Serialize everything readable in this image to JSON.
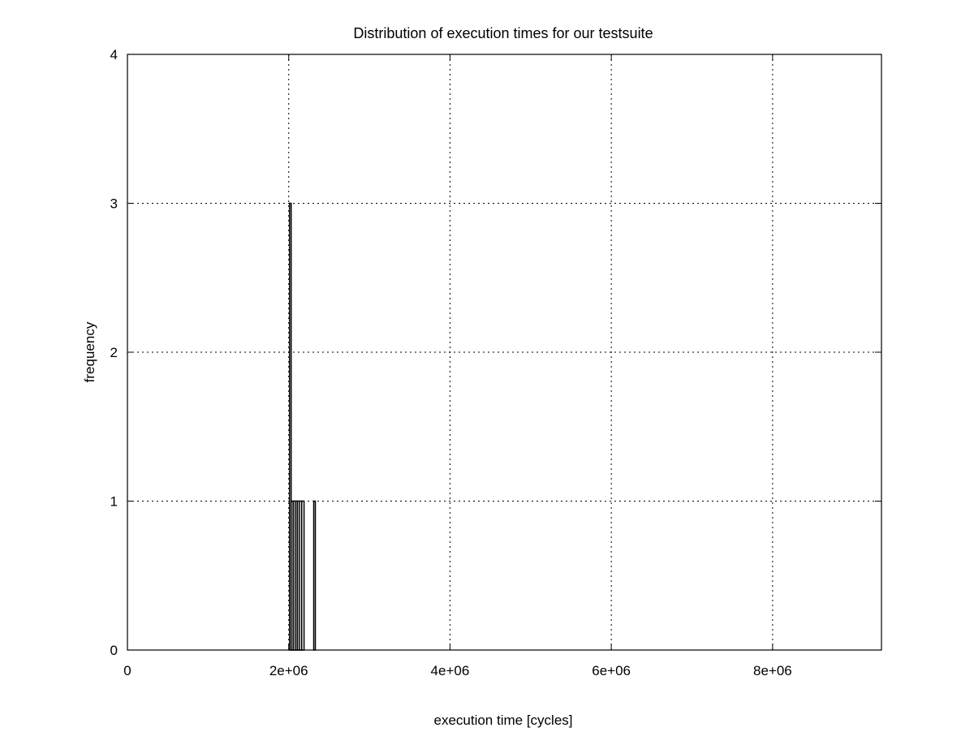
{
  "chart_data": {
    "type": "bar",
    "title": "Distribution of execution times for our testsuite",
    "xlabel": "execution time [cycles]",
    "ylabel": "frequency",
    "xlim": [
      0,
      9350000
    ],
    "ylim": [
      0,
      4
    ],
    "grid": true,
    "legend": "none",
    "x_ticks": [
      {
        "value": 0,
        "label": "0"
      },
      {
        "value": 2000000,
        "label": "2e+06"
      },
      {
        "value": 4000000,
        "label": "4e+06"
      },
      {
        "value": 6000000,
        "label": "6e+06"
      },
      {
        "value": 8000000,
        "label": "8e+06"
      }
    ],
    "y_ticks": [
      {
        "value": 0,
        "label": "0"
      },
      {
        "value": 1,
        "label": "1"
      },
      {
        "value": 2,
        "label": "2"
      },
      {
        "value": 3,
        "label": "3"
      },
      {
        "value": 4,
        "label": "4"
      }
    ],
    "bins": [
      {
        "start": 2010000,
        "end": 2030000,
        "value": 3
      },
      {
        "start": 2030000,
        "end": 2055000,
        "value": 1
      },
      {
        "start": 2055000,
        "end": 2080000,
        "value": 1
      },
      {
        "start": 2080000,
        "end": 2105000,
        "value": 1
      },
      {
        "start": 2105000,
        "end": 2130000,
        "value": 1
      },
      {
        "start": 2130000,
        "end": 2160000,
        "value": 1
      },
      {
        "start": 2160000,
        "end": 2190000,
        "value": 1
      },
      {
        "start": 2310000,
        "end": 2330000,
        "value": 1
      }
    ],
    "colors": {
      "bar": "#000000",
      "background": "#ffffff"
    }
  }
}
